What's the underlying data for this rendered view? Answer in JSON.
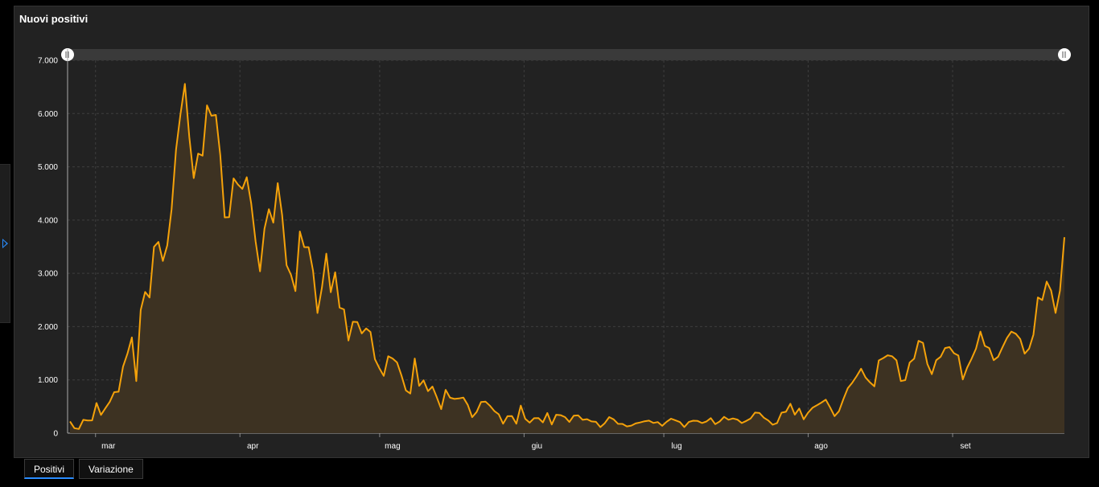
{
  "panel": {
    "title": "Nuovi positivi"
  },
  "tabs": [
    {
      "label": "Positivi",
      "active": true
    },
    {
      "label": "Variazione",
      "active": false
    }
  ],
  "colors": {
    "line": "#f5a20a",
    "area": "#3d3222",
    "background": "#222222",
    "grid": "#3e3e3e",
    "tab_accent": "#2a8cff"
  },
  "chart_data": {
    "type": "area",
    "title": "Nuovi positivi",
    "xlabel": "",
    "ylabel": "",
    "x_range": [
      "2020-02-24",
      "2020-09-25"
    ],
    "ylim": [
      0,
      7000
    ],
    "yticks": [
      0,
      1000,
      2000,
      3000,
      4000,
      5000,
      6000,
      7000
    ],
    "ytick_labels": [
      "0",
      "1.000",
      "2.000",
      "3.000",
      "4.000",
      "5.000",
      "6.000",
      "7.000"
    ],
    "xticks": [
      {
        "date": "2020-03-01",
        "label": "mar"
      },
      {
        "date": "2020-04-01",
        "label": "apr"
      },
      {
        "date": "2020-05-01",
        "label": "mag"
      },
      {
        "date": "2020-06-01",
        "label": "giu"
      },
      {
        "date": "2020-07-01",
        "label": "lug"
      },
      {
        "date": "2020-08-01",
        "label": "ago"
      },
      {
        "date": "2020-09-01",
        "label": "set"
      }
    ],
    "grid": true,
    "legend": "none",
    "series": [
      {
        "name": "Positivi",
        "values": [
          221,
          93,
          78,
          250,
          238,
          240,
          566,
          342,
          466,
          587,
          769,
          778,
          1247,
          1492,
          1797,
          977,
          2313,
          2651,
          2547,
          3497,
          3590,
          3233,
          3526,
          4207,
          5322,
          5986,
          6557,
          5560,
          4789,
          5249,
          5210,
          6153,
          5959,
          5974,
          5217,
          4050,
          4053,
          4782,
          4668,
          4585,
          4805,
          4316,
          3599,
          3039,
          3836,
          4204,
          3951,
          4694,
          4092,
          3153,
          2972,
          2667,
          3786,
          3493,
          3491,
          3047,
          2256,
          2729,
          3370,
          2646,
          3021,
          2357,
          2324,
          1739,
          2091,
          2086,
          1872,
          1965,
          1900,
          1389,
          1221,
          1075,
          1444,
          1401,
          1327,
          1083,
          802,
          744,
          1402,
          888,
          992,
          789,
          875,
          675,
          451,
          813,
          665,
          642,
          652,
          669,
          531,
          300,
          397,
          584,
          593,
          516,
          416,
          355,
          178,
          318,
          321,
          177,
          518,
          270,
          197,
          280,
          283,
          202,
          379,
          163,
          346,
          338,
          301,
          210,
          329,
          333,
          251,
          262,
          221,
          213,
          113,
          187,
          301,
          259,
          175,
          174,
          126,
          142,
          182,
          201,
          223,
          235,
          192,
          208,
          138,
          214,
          271,
          240,
          208,
          114,
          209,
          234,
          230,
          190,
          219,
          282,
          169,
          218,
          306,
          252,
          276,
          255,
          190,
          229,
          276,
          386,
          379,
          289,
          239,
          159,
          190,
          384,
          401,
          552,
          347,
          463,
          259,
          384,
          477,
          523,
          574,
          629,
          479,
          320,
          412,
          640,
          845,
          947,
          1071,
          1210,
          1045,
          953,
          878,
          1365,
          1409,
          1462,
          1444,
          1367,
          978,
          996,
          1326,
          1397,
          1733,
          1695,
          1297,
          1108,
          1370,
          1434,
          1597,
          1616,
          1501,
          1458,
          1008,
          1229,
          1397,
          1585,
          1907,
          1638,
          1597,
          1370,
          1434,
          1616,
          1786,
          1907,
          1866,
          1766,
          1492,
          1587,
          1850,
          2548,
          2499,
          2845,
          2677,
          2257,
          2677,
          3678
        ]
      }
    ]
  }
}
